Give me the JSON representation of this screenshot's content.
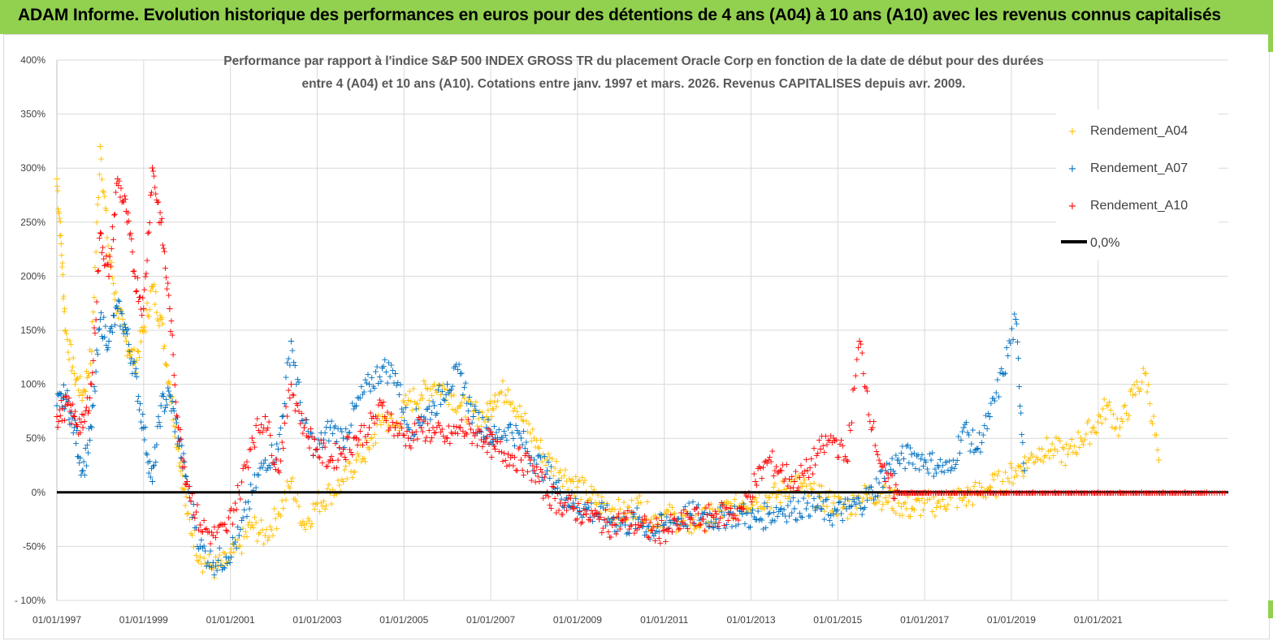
{
  "header": {
    "title": "ADAM Informe. Evolution historique des performances en euros pour des détentions de 4 ans (A04) à 10 ans (A10) avec les revenus connus capitalisés"
  },
  "colors": {
    "banner": "#92d050",
    "a04": "#ffc000",
    "a07": "#0070c0",
    "a10": "#ff0000",
    "zero_line": "#000000",
    "grid": "#d9d9d9"
  },
  "chart_data": {
    "type": "scatter",
    "title_lines": [
      "Performance par rapport à l'indice S&P 500 INDEX GROSS TR  du placement Oracle Corp en fonction de la date de début pour des durées",
      "entre 4 (A04) et 10 ans (A10). Cotations entre janv. 1997 et mars. 2026. Revenus CAPITALISES depuis avr. 2009."
    ],
    "xlabel": "",
    "ylabel": "",
    "ylim": [
      -100,
      400
    ],
    "xlim": [
      "1997-01-01",
      "2023-12-31"
    ],
    "yticks": [
      -100,
      -50,
      0,
      50,
      100,
      150,
      200,
      250,
      300,
      350,
      400
    ],
    "ytick_labels": [
      "- 100%",
      "-50%",
      "0%",
      "50%",
      "100%",
      "150%",
      "200%",
      "250%",
      "300%",
      "350%",
      "400%"
    ],
    "xtick_labels": [
      "01/01/1997",
      "01/01/1999",
      "01/01/2001",
      "01/01/2003",
      "01/01/2005",
      "01/01/2007",
      "01/01/2009",
      "01/01/2011",
      "01/01/2013",
      "01/01/2015",
      "01/01/2017",
      "01/01/2019",
      "01/01/2021"
    ],
    "xtick_years": [
      1997,
      1999,
      2001,
      2003,
      2005,
      2007,
      2009,
      2011,
      2013,
      2015,
      2017,
      2019,
      2021
    ],
    "grid": true,
    "legend_position": "right",
    "series": [
      {
        "name": "Rendement_A04",
        "marker": "+",
        "color": "#ffc000",
        "x": [
          1997.0,
          1997.1,
          1997.2,
          1997.4,
          1997.6,
          1997.8,
          1998.0,
          1998.2,
          1998.4,
          1998.6,
          1998.8,
          1999.0,
          1999.2,
          1999.4,
          1999.6,
          1999.8,
          2000.0,
          2000.3,
          2000.6,
          2000.9,
          2001.2,
          2001.5,
          2001.8,
          2002.1,
          2002.4,
          2002.7,
          2003.0,
          2003.3,
          2003.6,
          2003.9,
          2004.2,
          2004.5,
          2004.8,
          2005.1,
          2005.4,
          2005.7,
          2006.0,
          2006.3,
          2006.6,
          2006.9,
          2007.1,
          2007.4,
          2007.7,
          2008.0,
          2008.3,
          2008.6,
          2008.9,
          2009.2,
          2009.5,
          2009.8,
          2010.1,
          2010.4,
          2010.7,
          2011.0,
          2011.3,
          2011.6,
          2011.9,
          2012.2,
          2012.5,
          2012.8,
          2013.1,
          2013.4,
          2013.7,
          2014.0,
          2014.3,
          2014.6,
          2014.9,
          2015.2,
          2015.5,
          2015.8,
          2016.1,
          2016.4,
          2016.7,
          2017.0,
          2017.3,
          2017.6,
          2017.9,
          2018.2,
          2018.5,
          2018.8,
          2019.1,
          2019.4,
          2019.7,
          2020.0,
          2020.3,
          2020.6,
          2020.9,
          2021.2,
          2021.5,
          2021.8,
          2022.1,
          2022.4
        ],
        "y": [
          290,
          230,
          150,
          110,
          90,
          130,
          320,
          220,
          170,
          140,
          120,
          150,
          190,
          160,
          100,
          40,
          -20,
          -60,
          -70,
          -65,
          -50,
          -30,
          -40,
          -20,
          10,
          -30,
          -10,
          0,
          10,
          30,
          40,
          70,
          60,
          85,
          90,
          100,
          95,
          80,
          75,
          70,
          90,
          95,
          70,
          50,
          30,
          20,
          10,
          0,
          -10,
          -15,
          -20,
          -10,
          -25,
          -20,
          -25,
          -30,
          -25,
          -20,
          -15,
          -10,
          -5,
          -5,
          0,
          10,
          0,
          -5,
          -10,
          -15,
          -5,
          0,
          -5,
          -10,
          -15,
          -10,
          -10,
          -5,
          -5,
          0,
          5,
          10,
          20,
          30,
          40,
          40,
          35,
          50,
          60,
          80,
          60,
          90,
          110,
          30
        ]
      },
      {
        "name": "Rendement_A07",
        "marker": "+",
        "color": "#0070c0",
        "x": [
          1997.0,
          1997.2,
          1997.4,
          1997.6,
          1997.8,
          1998.0,
          1998.2,
          1998.4,
          1998.6,
          1998.8,
          1999.0,
          1999.2,
          1999.4,
          1999.6,
          1999.8,
          2000.0,
          2000.3,
          2000.6,
          2000.9,
          2001.2,
          2001.5,
          2001.8,
          2002.1,
          2002.4,
          2002.7,
          2003.0,
          2003.3,
          2003.6,
          2003.9,
          2004.2,
          2004.5,
          2004.8,
          2005.1,
          2005.4,
          2005.7,
          2006.0,
          2006.3,
          2006.6,
          2006.9,
          2007.1,
          2007.4,
          2007.7,
          2008.0,
          2008.3,
          2008.6,
          2008.9,
          2009.2,
          2009.5,
          2009.8,
          2010.1,
          2010.4,
          2010.7,
          2011.0,
          2011.3,
          2011.6,
          2011.9,
          2012.2,
          2012.5,
          2012.8,
          2013.1,
          2013.4,
          2013.7,
          2014.0,
          2014.3,
          2014.6,
          2014.9,
          2015.2,
          2015.5,
          2015.8,
          2016.1,
          2016.4,
          2016.7,
          2017.0,
          2017.3,
          2017.6,
          2017.9,
          2018.2,
          2018.5,
          2018.8,
          2019.1,
          2019.3
        ],
        "y": [
          80,
          90,
          60,
          20,
          60,
          160,
          140,
          170,
          150,
          110,
          60,
          10,
          80,
          90,
          50,
          10,
          -50,
          -65,
          -60,
          -40,
          0,
          30,
          40,
          140,
          60,
          40,
          60,
          50,
          80,
          100,
          115,
          110,
          60,
          70,
          80,
          100,
          110,
          70,
          60,
          50,
          60,
          50,
          30,
          20,
          0,
          -10,
          -15,
          -20,
          -25,
          -30,
          -25,
          -35,
          -30,
          -25,
          -20,
          -20,
          -25,
          -20,
          -20,
          -25,
          -20,
          -15,
          -15,
          -10,
          -15,
          -20,
          -15,
          -10,
          0,
          20,
          30,
          35,
          30,
          25,
          20,
          60,
          40,
          70,
          110,
          160,
          20
        ]
      },
      {
        "name": "Rendement_A10",
        "marker": "+",
        "color": "#ff0000",
        "x": [
          1997.0,
          1997.2,
          1997.4,
          1997.6,
          1997.8,
          1998.0,
          1998.2,
          1998.4,
          1998.6,
          1998.8,
          1999.0,
          1999.2,
          1999.4,
          1999.6,
          1999.8,
          2000.0,
          2000.3,
          2000.6,
          2000.9,
          2001.2,
          2001.5,
          2001.8,
          2002.1,
          2002.4,
          2002.7,
          2003.0,
          2003.3,
          2003.6,
          2003.9,
          2004.2,
          2004.5,
          2004.8,
          2005.1,
          2005.4,
          2005.7,
          2006.0,
          2006.3,
          2006.6,
          2006.9,
          2007.1,
          2007.4,
          2007.7,
          2008.0,
          2008.3,
          2008.6,
          2008.9,
          2009.2,
          2009.5,
          2009.8,
          2010.1,
          2010.4,
          2010.7,
          2011.0,
          2011.3,
          2011.6,
          2011.9,
          2012.2,
          2012.5,
          2012.8,
          2013.1,
          2013.4,
          2013.7,
          2014.0,
          2014.3,
          2014.6,
          2014.9,
          2015.2,
          2015.5,
          2015.8,
          2016.1,
          2016.4,
          2016.7,
          2017.0,
          2017.5,
          2018.0,
          2018.5,
          2019.0,
          2019.5,
          2020.0,
          2020.5,
          2021.0,
          2021.5,
          2022.0,
          2022.5,
          2023.0,
          2023.5
        ],
        "y": [
          70,
          80,
          70,
          60,
          100,
          240,
          200,
          290,
          260,
          200,
          170,
          300,
          250,
          170,
          60,
          10,
          -30,
          -40,
          -35,
          0,
          50,
          70,
          20,
          100,
          60,
          40,
          30,
          40,
          50,
          60,
          80,
          60,
          50,
          60,
          55,
          50,
          60,
          55,
          50,
          40,
          35,
          30,
          20,
          0,
          -10,
          -15,
          -20,
          -25,
          -30,
          -25,
          -30,
          -35,
          -35,
          -30,
          -25,
          -25,
          -20,
          -20,
          -15,
          10,
          30,
          20,
          10,
          20,
          40,
          50,
          30,
          140,
          60,
          10,
          0,
          0,
          0,
          0,
          0,
          0,
          0,
          0,
          0,
          0,
          0,
          0,
          0,
          0,
          0,
          0
        ]
      }
    ],
    "reference_line": {
      "name": "0,0%",
      "y": 0,
      "color": "#000000"
    }
  }
}
